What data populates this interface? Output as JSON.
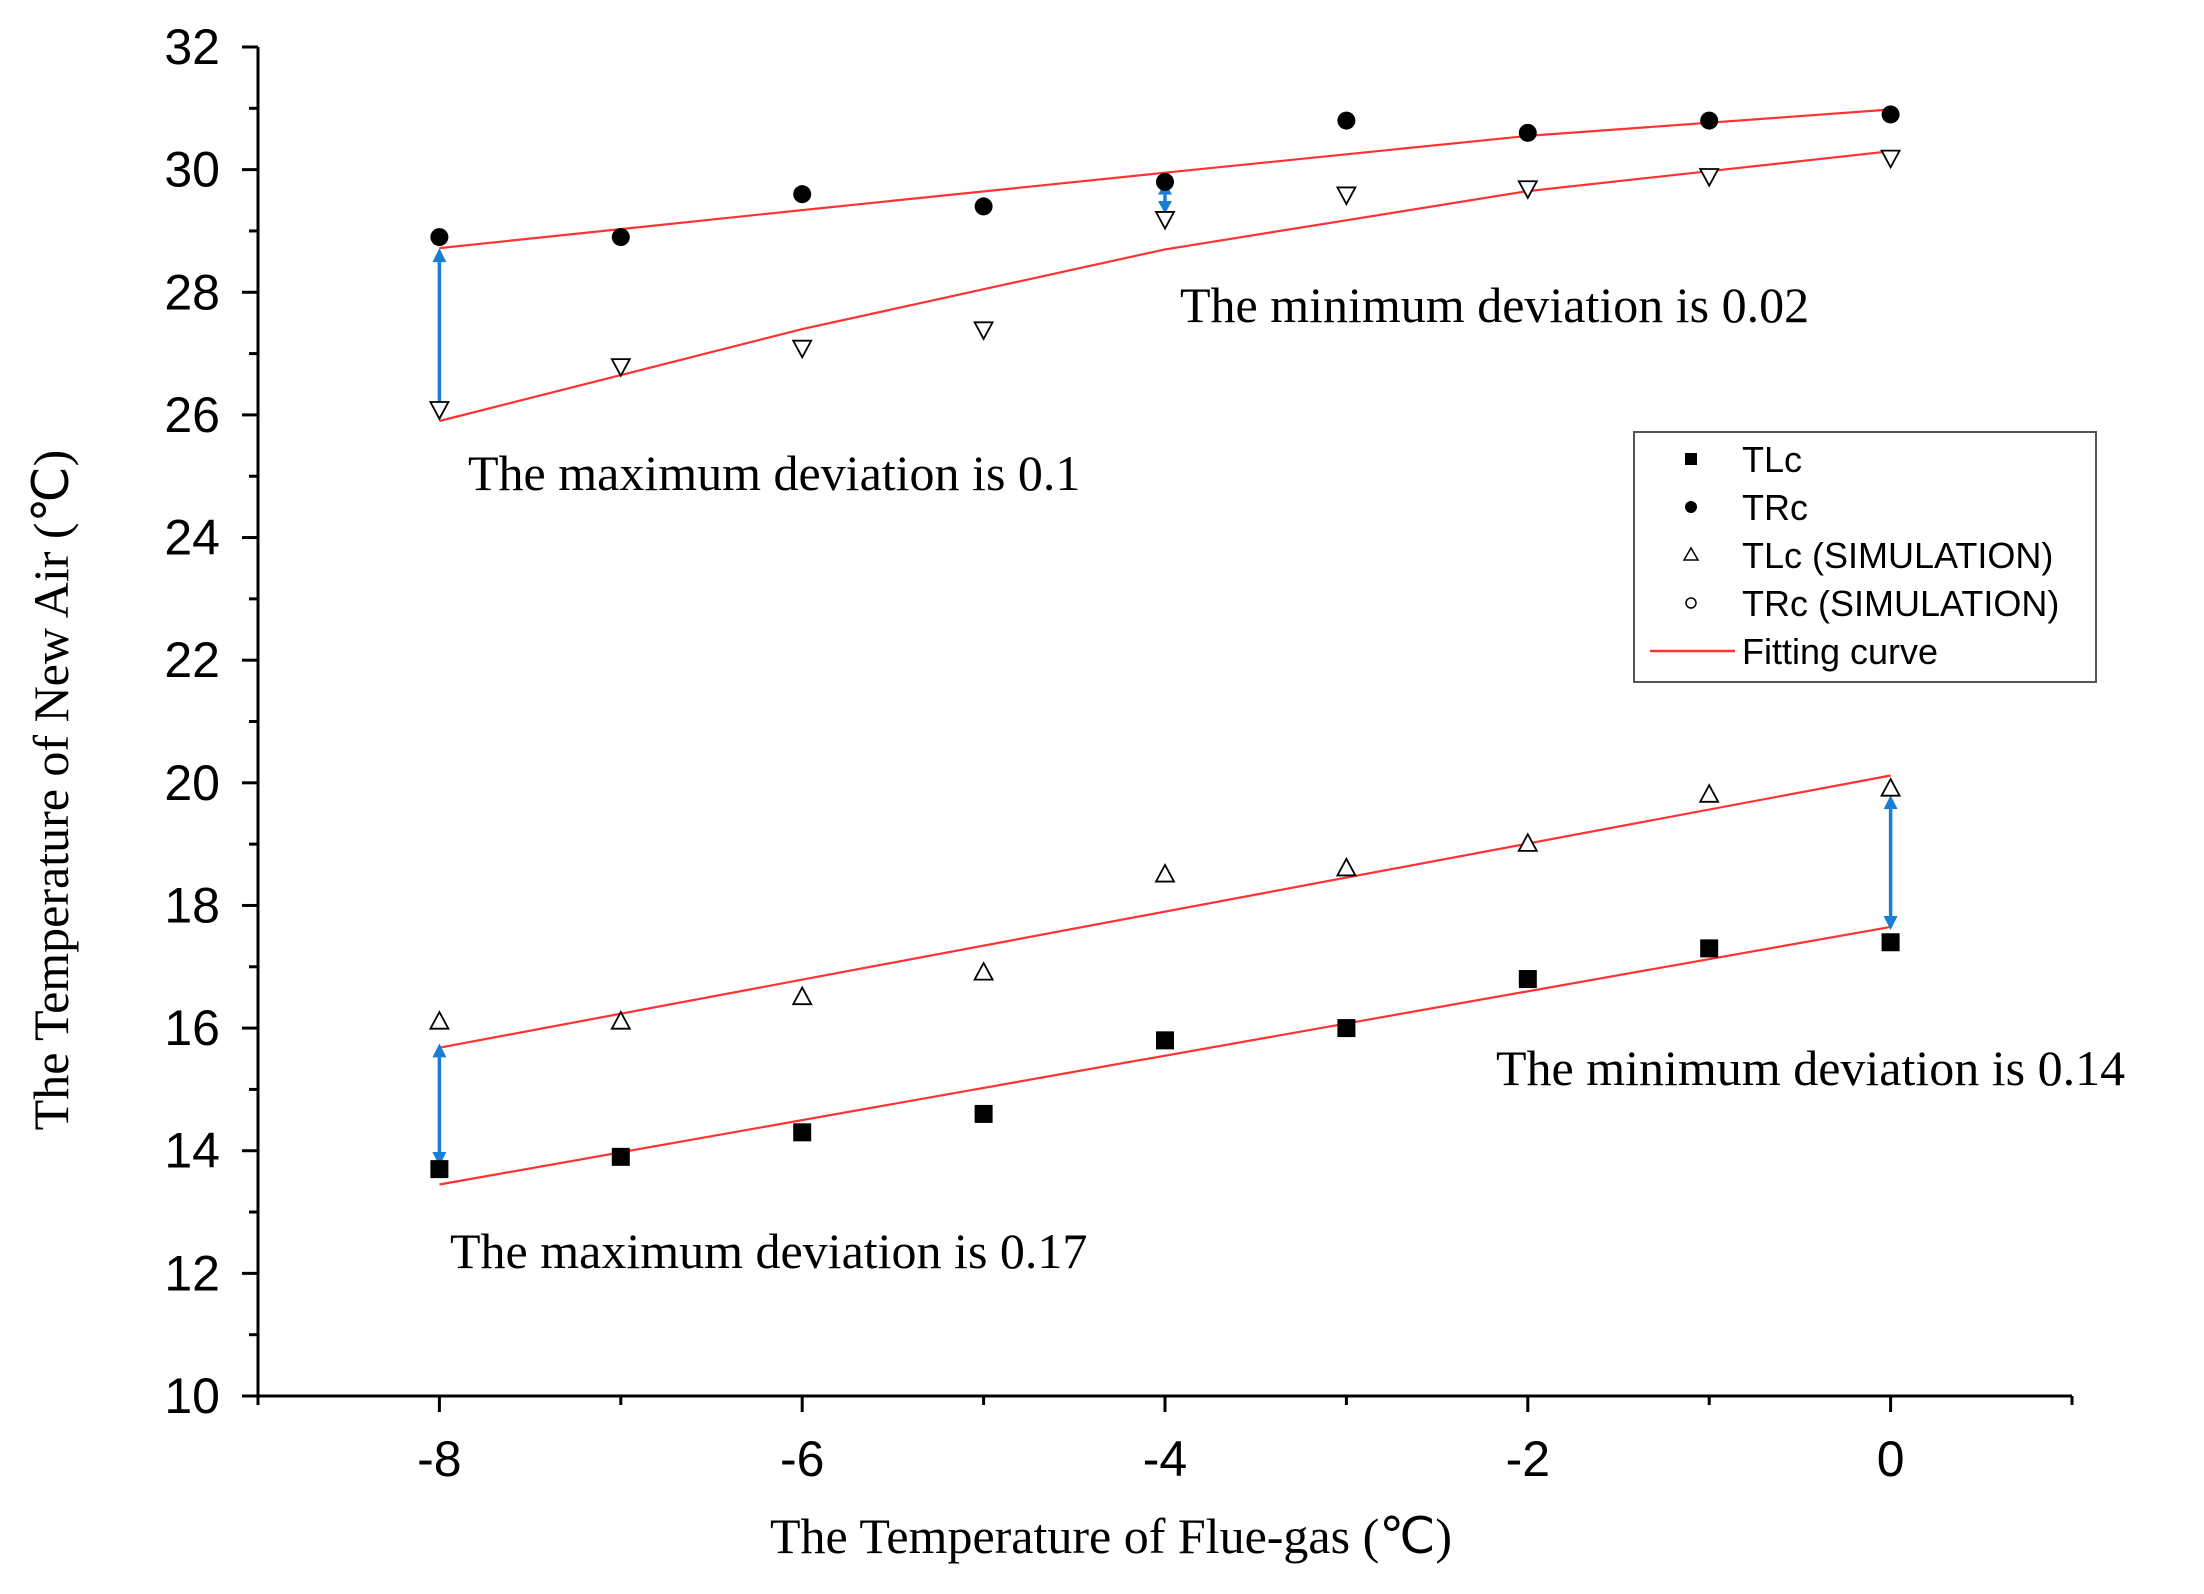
{
  "chart_data": {
    "type": "scatter",
    "xlabel": "The Temperature of Flue-gas  (℃)",
    "ylabel": "The Temperature of New Air  (℃)",
    "xlim": [
      -9,
      1
    ],
    "ylim": [
      10,
      32
    ],
    "xticks": [
      -8,
      -6,
      -4,
      -2,
      0
    ],
    "yticks": [
      10,
      12,
      14,
      16,
      18,
      20,
      22,
      24,
      26,
      28,
      30,
      32
    ],
    "x": [
      -8,
      -7,
      -6,
      -5,
      -4,
      -3,
      -2,
      -1,
      0
    ],
    "series": [
      {
        "name": "TLc",
        "marker": "square",
        "values": [
          13.7,
          13.9,
          14.3,
          14.6,
          15.8,
          16.0,
          16.8,
          17.3,
          17.4
        ]
      },
      {
        "name": "TRc",
        "marker": "circle",
        "values": [
          28.9,
          28.9,
          29.6,
          29.4,
          29.8,
          30.8,
          30.6,
          30.8,
          30.9
        ]
      },
      {
        "name": "TLc (SIMULATION)",
        "marker": "triangle-up",
        "values": [
          16.1,
          16.1,
          16.5,
          16.9,
          18.5,
          18.6,
          19.0,
          19.8,
          19.9
        ]
      },
      {
        "name": "TRc (SIMULATION)",
        "marker": "triangle-down",
        "values": [
          26.1,
          26.8,
          27.1,
          27.4,
          29.2,
          29.6,
          29.7,
          29.9,
          30.2
        ]
      }
    ],
    "fitting_curves": [
      {
        "name": "Fitting curve",
        "points": [
          [
            -8,
            28.72
          ],
          [
            -6,
            29.34
          ],
          [
            -4,
            29.95
          ],
          [
            -2,
            30.55
          ],
          [
            0,
            30.98
          ]
        ]
      },
      {
        "name": "Fitting curve",
        "points": [
          [
            -8,
            25.9
          ],
          [
            -6,
            27.4
          ],
          [
            -4,
            28.7
          ],
          [
            -2,
            29.65
          ],
          [
            0,
            30.3
          ]
        ]
      },
      {
        "name": "Fitting curve",
        "points": [
          [
            -8,
            15.68
          ],
          [
            0,
            20.12
          ]
        ]
      },
      {
        "name": "Fitting curve",
        "points": [
          [
            -8,
            13.45
          ],
          [
            0,
            17.65
          ]
        ]
      }
    ],
    "deviation_arrows": [
      {
        "x": -8,
        "from": 28.72,
        "to": 25.9
      },
      {
        "x": -4,
        "from": 29.8,
        "to": 29.28
      },
      {
        "x": -8,
        "from": 15.75,
        "to": 13.75
      },
      {
        "x": 0,
        "from": 19.8,
        "to": 17.6
      }
    ],
    "annotations": [
      "The minimum deviation is 0.02",
      "The maximum deviation is 0.1",
      "The minimum deviation is 0.14",
      "The maximum deviation is 0.17"
    ],
    "legend": [
      "TLc",
      "TRc",
      "TLc (SIMULATION)",
      "TRc (SIMULATION)",
      "Fitting curve"
    ],
    "legend_position": "center-right",
    "colors": {
      "fit": "#ff3333",
      "arrow": "#1a7fd4",
      "marker": "#000000"
    }
  }
}
